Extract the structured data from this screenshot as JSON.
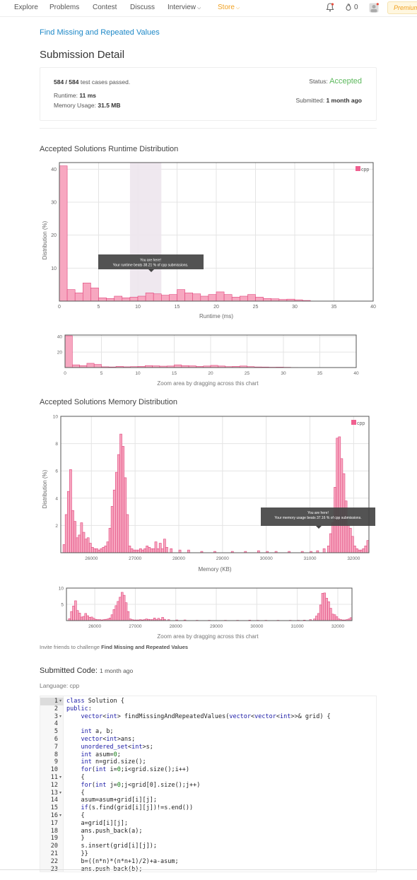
{
  "nav": {
    "items": [
      "Explore",
      "Problems",
      "Contest",
      "Discuss",
      "Interview",
      "Store"
    ],
    "notification_count": "0",
    "premium_label": "Premium"
  },
  "problem_title": "Find Missing and Repeated Values",
  "page_title": "Submission Detail",
  "summary": {
    "tests_passed": "584 / 584",
    "tests_suffix": "test cases passed.",
    "status_label": "Status:",
    "status_value": "Accepted",
    "runtime_label": "Runtime:",
    "runtime_value": "11 ms",
    "memory_label": "Memory Usage:",
    "memory_value": "31.5 MB",
    "submitted_label": "Submitted:",
    "submitted_value": "1 month ago"
  },
  "runtime_section_title": "Accepted Solutions Runtime Distribution",
  "memory_section_title": "Accepted Solutions Memory Distribution",
  "zoom_hint": "Zoom area by dragging across this chart",
  "colors": {
    "bar_fill": "#f7a7c0",
    "bar_stroke": "#e0457b",
    "accent": "#5cb85c",
    "link": "#1e88c7"
  },
  "chart_data": [
    {
      "type": "bar",
      "name": "runtime-distribution",
      "xlabel": "Runtime (ms)",
      "ylabel": "Distribution (%)",
      "legend": "cpp",
      "legend_position": "top-right",
      "xlim": [
        0,
        40
      ],
      "ylim": [
        0,
        42
      ],
      "xticks": [
        0,
        5,
        10,
        15,
        20,
        25,
        30,
        35,
        40
      ],
      "yticks": [
        10,
        20,
        30,
        40
      ],
      "grid": true,
      "highlight_range": [
        9,
        13
      ],
      "tooltip_title": "You are here!",
      "tooltip_text": "Your runtime beats 38.21 % of cpp submissions.",
      "x": [
        0,
        1,
        2,
        3,
        4,
        5,
        6,
        7,
        8,
        9,
        10,
        11,
        12,
        13,
        14,
        15,
        16,
        17,
        18,
        19,
        20,
        21,
        22,
        23,
        24,
        25,
        26,
        27,
        28,
        29,
        30,
        31
      ],
      "values": [
        41,
        3.5,
        2.5,
        5.5,
        4,
        1,
        0.8,
        1.5,
        1,
        1.2,
        1.5,
        2.5,
        2.2,
        1.8,
        2,
        3.5,
        2.5,
        2.2,
        1.5,
        2,
        2.8,
        2,
        1.2,
        1.5,
        2,
        1.2,
        0.8,
        0.7,
        0.5,
        0.6,
        0.4,
        0.2
      ]
    },
    {
      "type": "bar",
      "name": "memory-distribution",
      "xlabel": "Memory (KB)",
      "ylabel": "Distribution (%)",
      "legend": "cpp",
      "legend_position": "top-right",
      "xlim": [
        25300,
        32350
      ],
      "ylim": [
        0,
        10
      ],
      "xticks": [
        26000,
        27000,
        28000,
        29000,
        30000,
        31000,
        32000
      ],
      "yticks": [
        2,
        4,
        6,
        8,
        10
      ],
      "grid": true,
      "tooltip_title": "You are here!",
      "tooltip_text": "Your memory usage beats 37.16 % of cpp submissions.",
      "x": [
        25350,
        25400,
        25450,
        25500,
        25550,
        25600,
        25650,
        25700,
        25750,
        25800,
        25850,
        25900,
        25950,
        26000,
        26050,
        26100,
        26150,
        26200,
        26250,
        26300,
        26350,
        26400,
        26450,
        26500,
        26550,
        26600,
        26650,
        26700,
        26750,
        26800,
        26850,
        26900,
        26950,
        27000,
        27050,
        27100,
        27150,
        27200,
        27250,
        27300,
        27350,
        27400,
        27450,
        27500,
        27550,
        27600,
        27650,
        27700,
        27800,
        28000,
        28200,
        28500,
        28800,
        29200,
        29500,
        29800,
        30000,
        30200,
        30500,
        30800,
        31000,
        31150,
        31300,
        31400,
        31450,
        31500,
        31550,
        31600,
        31650,
        31700,
        31750,
        31800,
        31850,
        31900,
        31950,
        32000,
        32050,
        32100,
        32150,
        32200,
        32250,
        32300
      ],
      "values": [
        0.6,
        2.8,
        4.5,
        6.1,
        3.1,
        2.3,
        1.1,
        1.3,
        2.2,
        1.5,
        1.0,
        1.1,
        0.7,
        0.4,
        0.3,
        0.3,
        0.2,
        0.3,
        0.4,
        0.5,
        0.8,
        1.8,
        3.4,
        4.6,
        5.9,
        7.2,
        8.7,
        7.8,
        5.5,
        2.8,
        0.5,
        0.3,
        0.2,
        0.2,
        0.2,
        0.3,
        0.2,
        0.3,
        0.5,
        0.4,
        0.3,
        0.3,
        0.8,
        0.3,
        0.7,
        0.3,
        1.0,
        0.4,
        0.3,
        0.2,
        0.2,
        0.1,
        0.1,
        0.1,
        0.1,
        0.15,
        0.1,
        0.1,
        0.1,
        0.1,
        0.1,
        0.15,
        0.3,
        0.5,
        1.4,
        2.2,
        4.8,
        8.4,
        8.5,
        6.9,
        5.8,
        3.8,
        2.0,
        1.8,
        1.2,
        0.5,
        0.3,
        0.2,
        0.2,
        0.3,
        0.5,
        0.9
      ]
    }
  ],
  "invite_text": "Invite friends to challenge",
  "invite_problem": "Find Missing and Repeated Values",
  "submitted_code_label": "Submitted Code:",
  "submitted_code_time": "1 month ago",
  "language_label": "Language: cpp",
  "code_lines": [
    "class Solution {",
    "public:",
    "    vector<int> findMissingAndRepeatedValues(vector<vector<int>>& grid) {",
    "",
    "    int a, b;",
    "    vector<int>ans;",
    "    unordered_set<int>s;",
    "    int asum=0;",
    "    int n=grid.size();",
    "    for(int i=0;i<grid.size();i++)",
    "    {",
    "    for(int j=0;j<grid[0].size();j++)",
    "    {",
    "    asum=asum+grid[i][j];",
    "    if(s.find(grid[i][j])!=s.end())",
    "    {",
    "    a=grid[i][j];",
    "    ans.push_back(a);",
    "    }",
    "    s.insert(grid[i][j]);",
    "    }}",
    "    b=((n*n)*(n*n+1)/2)+a-asum;",
    "    ans.push_back(b);"
  ]
}
